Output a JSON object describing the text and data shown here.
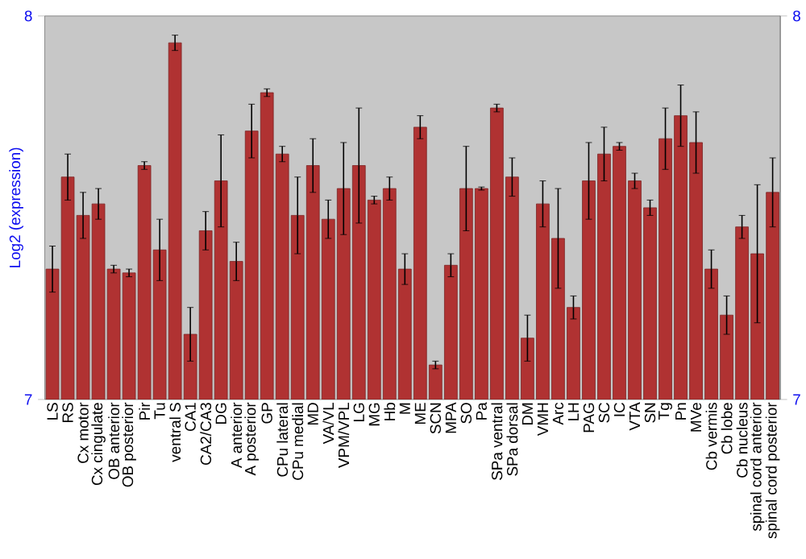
{
  "chart_data": {
    "type": "bar",
    "ylabel": "Log2 (expression)",
    "categories": [
      "LS",
      "RS",
      "Cx motor",
      "Cx cingulate",
      "OB anterior",
      "OB posterior",
      "Pir",
      "Tu",
      "ventral S",
      "CA1",
      "CA2/CA3",
      "DG",
      "A anterior",
      "A posterior",
      "GP",
      "CPu lateral",
      "CPu medial",
      "MD",
      "VA/VL",
      "VPM/VPL",
      "LG",
      "MG",
      "Hb",
      "M",
      "ME",
      "SCN",
      "MPA",
      "SO",
      "Pa",
      "SPa ventral",
      "SPa dorsal",
      "DM",
      "VMH",
      "Arc",
      "LH",
      "PAG",
      "SC",
      "IC",
      "VTA",
      "SN",
      "Tg",
      "Pn",
      "MVe",
      "Cb vermis",
      "Cb lobe",
      "Cb nucleus",
      "spinal cord anterior",
      "spinal cord posterior"
    ],
    "values": [
      7.34,
      7.58,
      7.48,
      7.51,
      7.34,
      7.33,
      7.61,
      7.39,
      7.93,
      7.17,
      7.44,
      7.57,
      7.36,
      7.7,
      7.8,
      7.64,
      7.48,
      7.61,
      7.47,
      7.55,
      7.61,
      7.52,
      7.55,
      7.34,
      7.71,
      7.09,
      7.35,
      7.55,
      7.55,
      7.76,
      7.58,
      7.16,
      7.51,
      7.42,
      7.24,
      7.57,
      7.64,
      7.66,
      7.57,
      7.5,
      7.68,
      7.74,
      7.67,
      7.34,
      7.22,
      7.45,
      7.38,
      7.54
    ],
    "errors": [
      0.06,
      0.06,
      0.06,
      0.04,
      0.01,
      0.01,
      0.01,
      0.08,
      0.02,
      0.07,
      0.05,
      0.12,
      0.05,
      0.07,
      0.01,
      0.02,
      0.1,
      0.07,
      0.05,
      0.12,
      0.15,
      0.01,
      0.03,
      0.04,
      0.03,
      0.01,
      0.03,
      0.11,
      0.004,
      0.01,
      0.05,
      0.06,
      0.06,
      0.13,
      0.03,
      0.1,
      0.07,
      0.01,
      0.02,
      0.02,
      0.08,
      0.08,
      0.08,
      0.05,
      0.05,
      0.03,
      0.18,
      0.09
    ],
    "color": "#b03232",
    "ylim": [
      7,
      8
    ],
    "yticks": [
      7,
      8
    ],
    "y2lim": [
      7,
      8
    ],
    "y2ticks": [
      7,
      8
    ]
  }
}
